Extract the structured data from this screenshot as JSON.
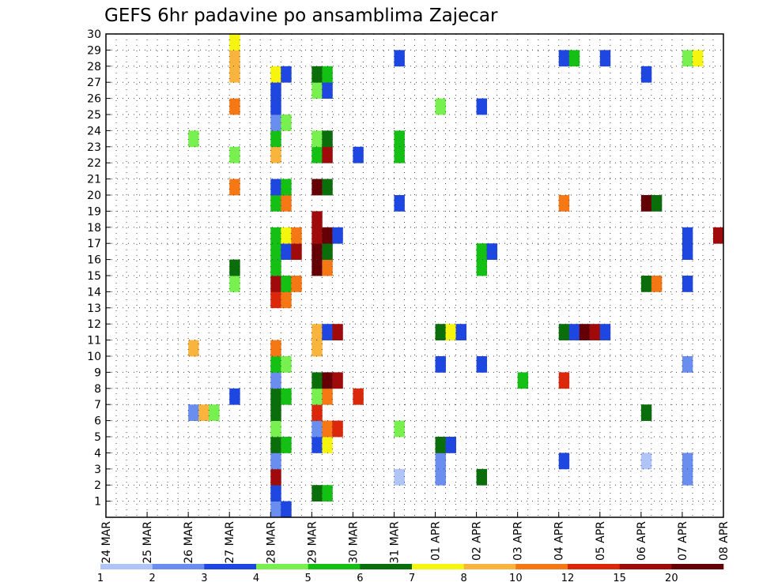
{
  "chart_data": {
    "type": "heatmap",
    "title": "GEFS 6hr padavine po ansamblima Zajecar",
    "xlabel": "",
    "ylabel": "",
    "x_tick_labels": [
      "24 MAR",
      "25 MAR",
      "26 MAR",
      "27 MAR",
      "28 MAR",
      "29 MAR",
      "30 MAR",
      "31 MAR",
      "01 APR",
      "02 APR",
      "03 APR",
      "04 APR",
      "05 APR",
      "06 APR",
      "07 APR",
      "08 APR"
    ],
    "y_tick_labels": [
      "1",
      "2",
      "3",
      "4",
      "5",
      "6",
      "7",
      "8",
      "9",
      "10",
      "11",
      "12",
      "13",
      "14",
      "15",
      "16",
      "17",
      "18",
      "19",
      "20",
      "21",
      "22",
      "23",
      "24",
      "25",
      "26",
      "27",
      "28",
      "29",
      "30"
    ],
    "xlim": [
      0,
      60
    ],
    "ylim": [
      0,
      30
    ],
    "grid": true,
    "legend": {
      "position": "bottom",
      "levels": [
        "1",
        "2",
        "3",
        "4",
        "5",
        "6",
        "7",
        "8",
        "10",
        "12",
        "15",
        "20"
      ],
      "colors": [
        "#b0c4f8",
        "#6a8ef0",
        "#1e46e0",
        "#78f050",
        "#14c014",
        "#0a6e0a",
        "#f5f50f",
        "#f8b43c",
        "#f57814",
        "#dc280a",
        "#a00a0a",
        "#640005"
      ]
    },
    "bins": [
      "1-2",
      "2-3",
      "3-4",
      "4-5",
      "5-6",
      "6-7",
      "7-8",
      "8-10",
      "10-12",
      "12-15",
      "15-20",
      ">20"
    ],
    "cells": [
      [
        "28 MAR",
        "1",
        2
      ],
      [
        "28 MAR",
        "1",
        3
      ],
      [
        "28 MAR",
        "2",
        3
      ],
      [
        "29 MAR",
        "2",
        6
      ],
      [
        "29 MAR",
        "2",
        5
      ],
      [
        "28 MAR",
        "3",
        11
      ],
      [
        "31 MAR",
        "3",
        1
      ],
      [
        "01 APR",
        "3",
        2
      ],
      [
        "02 APR",
        "3",
        6
      ],
      [
        "07 APR",
        "3",
        2
      ],
      [
        "28 MAR",
        "4",
        2
      ],
      [
        "01 APR",
        "4",
        2
      ],
      [
        "04 APR",
        "4",
        3
      ],
      [
        "06 APR",
        "4",
        1
      ],
      [
        "07 APR",
        "4",
        2
      ],
      [
        "28 MAR",
        "5",
        6
      ],
      [
        "28 MAR",
        "5",
        5
      ],
      [
        "29 MAR",
        "5",
        3
      ],
      [
        "29 MAR",
        "5",
        7
      ],
      [
        "01 APR",
        "5",
        6
      ],
      [
        "01 APR",
        "5",
        3
      ],
      [
        "28 MAR",
        "6",
        4
      ],
      [
        "29 MAR",
        "6",
        2
      ],
      [
        "29 MAR",
        "6",
        9
      ],
      [
        "29 MAR",
        "6",
        10
      ],
      [
        "31 MAR",
        "6",
        4
      ],
      [
        "26 MAR",
        "7",
        2
      ],
      [
        "26 MAR",
        "7",
        8
      ],
      [
        "26 MAR",
        "7",
        4
      ],
      [
        "28 MAR",
        "7",
        6
      ],
      [
        "29 MAR",
        "7",
        10
      ],
      [
        "06 APR",
        "7",
        6
      ],
      [
        "27 MAR",
        "8",
        3
      ],
      [
        "28 MAR",
        "8",
        6
      ],
      [
        "28 MAR",
        "8",
        5
      ],
      [
        "29 MAR",
        "8",
        4
      ],
      [
        "29 MAR",
        "8",
        9
      ],
      [
        "30 MAR",
        "8",
        10
      ],
      [
        "28 MAR",
        "9",
        2
      ],
      [
        "29 MAR",
        "9",
        6
      ],
      [
        "29 MAR",
        "9",
        12
      ],
      [
        "29 MAR",
        "9",
        11
      ],
      [
        "03 APR",
        "9",
        5
      ],
      [
        "04 APR",
        "9",
        10
      ],
      [
        "28 MAR",
        "10",
        5
      ],
      [
        "28 MAR",
        "10",
        4
      ],
      [
        "01 APR",
        "10",
        3
      ],
      [
        "02 APR",
        "10",
        3
      ],
      [
        "07 APR",
        "10",
        2
      ],
      [
        "26 MAR",
        "11",
        8
      ],
      [
        "28 MAR",
        "11",
        9
      ],
      [
        "29 MAR",
        "11",
        8
      ],
      [
        "29 MAR",
        "12",
        8
      ],
      [
        "29 MAR",
        "12",
        3
      ],
      [
        "29 MAR",
        "12",
        11
      ],
      [
        "01 APR",
        "12",
        6
      ],
      [
        "01 APR",
        "12",
        7
      ],
      [
        "01 APR",
        "12",
        3
      ],
      [
        "04 APR",
        "12",
        6
      ],
      [
        "04 APR",
        "12",
        3
      ],
      [
        "04 APR",
        "12",
        12
      ],
      [
        "04 APR",
        "12",
        11
      ],
      [
        "05 APR",
        "12",
        3
      ],
      [
        "28 MAR",
        "14",
        10
      ],
      [
        "28 MAR",
        "14",
        9
      ],
      [
        "27 MAR",
        "15",
        4
      ],
      [
        "28 MAR",
        "15",
        11
      ],
      [
        "28 MAR",
        "15",
        5
      ],
      [
        "28 MAR",
        "15",
        9
      ],
      [
        "06 APR",
        "15",
        6
      ],
      [
        "06 APR",
        "15",
        9
      ],
      [
        "07 APR",
        "15",
        3
      ],
      [
        "27 MAR",
        "16",
        6
      ],
      [
        "28 MAR",
        "16",
        5
      ],
      [
        "29 MAR",
        "16",
        12
      ],
      [
        "29 MAR",
        "16",
        9
      ],
      [
        "02 APR",
        "16",
        5
      ],
      [
        "28 MAR",
        "17",
        5
      ],
      [
        "28 MAR",
        "17",
        3
      ],
      [
        "28 MAR",
        "17",
        11
      ],
      [
        "29 MAR",
        "17",
        12
      ],
      [
        "29 MAR",
        "17",
        6
      ],
      [
        "02 APR",
        "17",
        5
      ],
      [
        "02 APR",
        "17",
        3
      ],
      [
        "07 APR",
        "17",
        3
      ],
      [
        "28 MAR",
        "18",
        5
      ],
      [
        "28 MAR",
        "18",
        7
      ],
      [
        "28 MAR",
        "18",
        9
      ],
      [
        "29 MAR",
        "18",
        11
      ],
      [
        "29 MAR",
        "18",
        12
      ],
      [
        "29 MAR",
        "18",
        3
      ],
      [
        "07 APR",
        "18",
        3
      ],
      [
        "08 APR",
        "18",
        11
      ],
      [
        "29 MAR",
        "19",
        11
      ],
      [
        "28 MAR",
        "20",
        5
      ],
      [
        "28 MAR",
        "20",
        9
      ],
      [
        "31 MAR",
        "20",
        3
      ],
      [
        "04 APR",
        "20",
        9
      ],
      [
        "06 APR",
        "20",
        12
      ],
      [
        "06 APR",
        "20",
        6
      ],
      [
        "27 MAR",
        "21",
        9
      ],
      [
        "28 MAR",
        "21",
        3
      ],
      [
        "28 MAR",
        "21",
        5
      ],
      [
        "29 MAR",
        "21",
        12
      ],
      [
        "29 MAR",
        "21",
        6
      ],
      [
        "27 MAR",
        "23",
        4
      ],
      [
        "28 MAR",
        "23",
        8
      ],
      [
        "29 MAR",
        "23",
        5
      ],
      [
        "29 MAR",
        "23",
        11
      ],
      [
        "30 MAR",
        "23",
        3
      ],
      [
        "31 MAR",
        "23",
        5
      ],
      [
        "26 MAR",
        "24",
        4
      ],
      [
        "28 MAR",
        "24",
        5
      ],
      [
        "29 MAR",
        "24",
        4
      ],
      [
        "29 MAR",
        "24",
        6
      ],
      [
        "31 MAR",
        "24",
        5
      ],
      [
        "28 MAR",
        "25",
        2
      ],
      [
        "28 MAR",
        "25",
        4
      ],
      [
        "27 MAR",
        "26",
        9
      ],
      [
        "28 MAR",
        "26",
        3
      ],
      [
        "01 APR",
        "26",
        4
      ],
      [
        "02 APR",
        "26",
        3
      ],
      [
        "28 MAR",
        "27",
        3
      ],
      [
        "29 MAR",
        "27",
        4
      ],
      [
        "29 MAR",
        "27",
        3
      ],
      [
        "27 MAR",
        "28",
        8
      ],
      [
        "28 MAR",
        "28",
        7
      ],
      [
        "28 MAR",
        "28",
        3
      ],
      [
        "29 MAR",
        "28",
        6
      ],
      [
        "29 MAR",
        "28",
        5
      ],
      [
        "06 APR",
        "28",
        3
      ],
      [
        "27 MAR",
        "29",
        8
      ],
      [
        "31 MAR",
        "29",
        3
      ],
      [
        "04 APR",
        "29",
        3
      ],
      [
        "04 APR",
        "29",
        5
      ],
      [
        "05 APR",
        "29",
        3
      ],
      [
        "07 APR",
        "29",
        4
      ],
      [
        "07 APR",
        "29",
        7
      ],
      [
        "27 MAR",
        "30",
        7
      ]
    ]
  }
}
